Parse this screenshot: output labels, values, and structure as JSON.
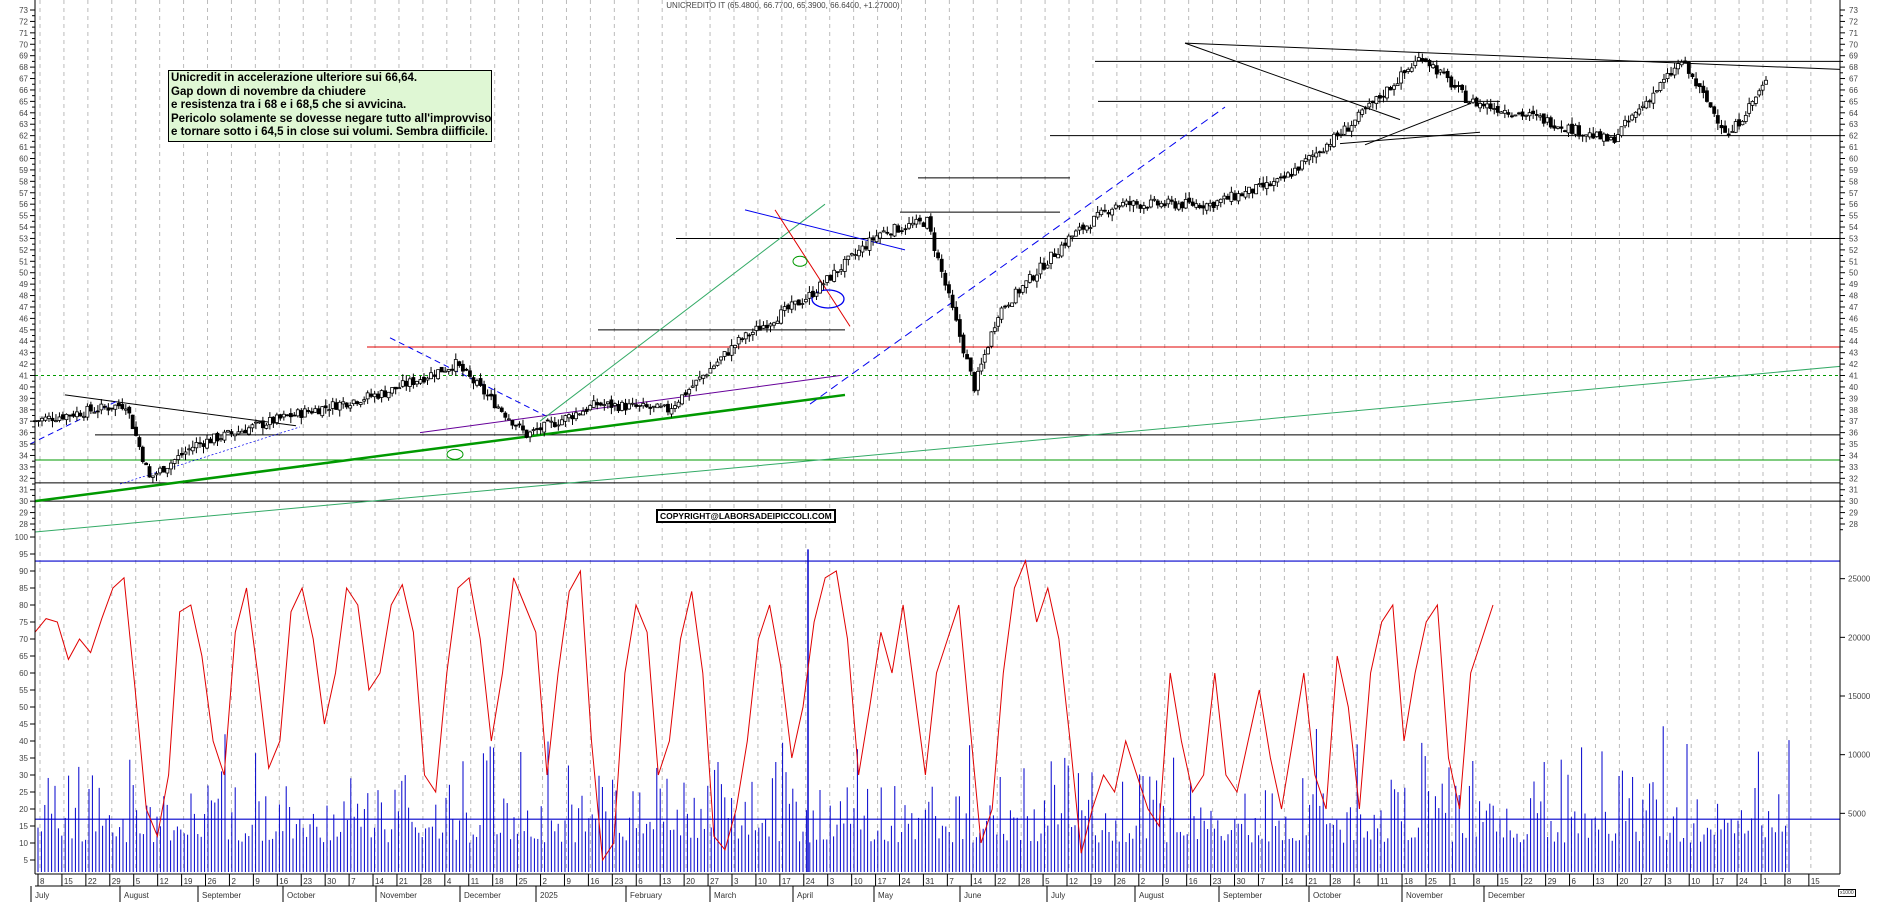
{
  "header": {
    "title": "UNICREDITO IT (65.4800, 66.7700, 65.3900, 66.6400, +1.27000)"
  },
  "note": {
    "lines": [
      "Unicredit in accelerazione ulteriore sui 66,64.",
      "Gap down di novembre da chiudere",
      "e resistenza tra i 68 e i 68,5 che si avvicina.",
      "Pericolo solamente se dovesse negare tutto all'improvviso",
      "e  tornare sotto i 64,5 in close sui volumi. Sembra diifficile."
    ]
  },
  "watermark": "COPYRIGHT@LABORSADEIPICCOLI.COM",
  "volume_unit_label": "x1000",
  "colors": {
    "price_candle": "#000000",
    "oscillator": "#e00000",
    "volume": "#0000cc",
    "support_green": "#009900",
    "trend_light_green": "#33aa66",
    "resistance_red": "#e00000",
    "trend_blue": "#0000ee",
    "trend_purple": "#660099",
    "note_bg": "#dff7d4"
  },
  "chart_data": [
    {
      "type": "candlestick",
      "title": "UNICREDITO IT (65.4800, 66.7700, 65.3900, 66.6400, +1.27000)",
      "last": {
        "open": 65.48,
        "high": 66.77,
        "low": 65.39,
        "close": 66.64,
        "change": 1.27
      },
      "ylim": [
        28,
        73
      ],
      "yticks": [
        28,
        29,
        30,
        31,
        32,
        33,
        34,
        35,
        36,
        37,
        38,
        39,
        40,
        41,
        42,
        43,
        44,
        45,
        46,
        47,
        48,
        49,
        50,
        51,
        52,
        53,
        54,
        55,
        56,
        57,
        58,
        59,
        60,
        61,
        62,
        63,
        64,
        65,
        66,
        67,
        68,
        69,
        70,
        71,
        72,
        73
      ],
      "x_months": [
        "July",
        "August",
        "September",
        "October",
        "November",
        "December",
        "2025",
        "February",
        "March",
        "April",
        "May",
        "June",
        "July",
        "August",
        "September",
        "October",
        "November",
        "December"
      ],
      "x_days": [
        "8",
        "15",
        "22",
        "29",
        "5",
        "12",
        "19",
        "26",
        "2",
        "9",
        "16",
        "23",
        "30",
        "7",
        "14",
        "21",
        "28",
        "4",
        "11",
        "18",
        "25",
        "2",
        "9",
        "16",
        "23",
        "6",
        "13",
        "20",
        "27",
        "3",
        "10",
        "17",
        "24",
        "3",
        "10",
        "17",
        "24",
        "31",
        "7",
        "14",
        "22",
        "28",
        "5",
        "12",
        "19",
        "26",
        "2",
        "9",
        "16",
        "23",
        "30",
        "7",
        "14",
        "21",
        "28",
        "4",
        "11",
        "18",
        "25",
        "1",
        "8",
        "15",
        "22",
        "29",
        "6",
        "13",
        "20",
        "27",
        "3",
        "10",
        "17",
        "24",
        "1",
        "8",
        "15"
      ],
      "approx_close_path": [
        {
          "date": "2024-07",
          "close": 37
        },
        {
          "date": "2024-07-29",
          "close": 38.5
        },
        {
          "date": "2024-08-05",
          "close": 32
        },
        {
          "date": "2024-08-19",
          "close": 35
        },
        {
          "date": "2024-09-16",
          "close": 37.5
        },
        {
          "date": "2024-10-14",
          "close": 39.5
        },
        {
          "date": "2024-11-04",
          "close": 42
        },
        {
          "date": "2024-11-25",
          "close": 35.8
        },
        {
          "date": "2024-12-16",
          "close": 38.5
        },
        {
          "date": "2025-01-06",
          "close": 38
        },
        {
          "date": "2025-01-27",
          "close": 44
        },
        {
          "date": "2025-02-17",
          "close": 48
        },
        {
          "date": "2025-03-10",
          "close": 53.5
        },
        {
          "date": "2025-03-24",
          "close": 54.5
        },
        {
          "date": "2025-04-07",
          "close": 40
        },
        {
          "date": "2025-04-14",
          "close": 46.5
        },
        {
          "date": "2025-05-05",
          "close": 53
        },
        {
          "date": "2025-05-19",
          "close": 56
        },
        {
          "date": "2025-06-16",
          "close": 56
        },
        {
          "date": "2025-07-07",
          "close": 58
        },
        {
          "date": "2025-07-28",
          "close": 63
        },
        {
          "date": "2025-08-18",
          "close": 69
        },
        {
          "date": "2025-09-01",
          "close": 65
        },
        {
          "date": "2025-09-22",
          "close": 63.5
        },
        {
          "date": "2025-10-13",
          "close": 61.5
        },
        {
          "date": "2025-11-03",
          "close": 68.5
        },
        {
          "date": "2025-11-17",
          "close": 62
        },
        {
          "date": "2025-11-28",
          "close": 66.64
        }
      ],
      "horizontal_levels": [
        {
          "value": 68.5,
          "color": "black"
        },
        {
          "value": 65,
          "color": "black"
        },
        {
          "value": 62,
          "color": "black"
        },
        {
          "value": 58.3,
          "color": "black"
        },
        {
          "value": 55.3,
          "color": "black"
        },
        {
          "value": 53,
          "color": "black"
        },
        {
          "value": 45,
          "color": "black"
        },
        {
          "value": 43.5,
          "color": "red"
        },
        {
          "value": 41,
          "color": "green-dotted"
        },
        {
          "value": 35.8,
          "color": "black"
        },
        {
          "value": 33.6,
          "color": "green"
        },
        {
          "value": 31.6,
          "color": "black"
        },
        {
          "value": 30,
          "color": "black"
        }
      ]
    },
    {
      "type": "line",
      "name": "oscillator",
      "ylim": [
        0,
        100
      ],
      "yticks": [
        5,
        10,
        15,
        20,
        25,
        30,
        35,
        40,
        45,
        50,
        55,
        60,
        65,
        70,
        75,
        80,
        85,
        90,
        95,
        100
      ],
      "reference_levels": [
        90,
        15
      ],
      "approx_values": [
        72,
        76,
        75,
        64,
        70,
        66,
        76,
        85,
        88,
        55,
        20,
        12,
        30,
        78,
        80,
        65,
        40,
        30,
        72,
        85,
        60,
        32,
        40,
        78,
        85,
        70,
        45,
        60,
        85,
        80,
        55,
        60,
        80,
        86,
        72,
        30,
        25,
        60,
        85,
        88,
        70,
        40,
        60,
        88,
        80,
        72,
        30,
        60,
        84,
        90,
        40,
        5,
        10,
        60,
        80,
        72,
        30,
        40,
        70,
        84,
        60,
        12,
        8,
        20,
        40,
        70,
        80,
        62,
        35,
        50,
        75,
        88,
        90,
        70,
        30,
        50,
        72,
        60,
        80,
        55,
        30,
        60,
        70,
        80,
        45,
        10,
        20,
        60,
        85,
        93,
        75,
        85,
        70,
        40,
        7,
        20,
        30,
        25,
        40,
        30,
        20,
        15,
        60,
        40,
        25,
        30,
        60,
        30,
        25,
        40,
        55,
        35,
        20,
        40,
        60,
        30,
        20,
        65,
        50,
        20,
        60,
        75,
        80,
        40,
        60,
        75,
        80,
        35,
        20,
        60,
        70,
        80
      ]
    },
    {
      "type": "bar",
      "name": "volume",
      "unit": "x1000",
      "ylim": [
        0,
        30000
      ],
      "yticks": [
        5000,
        10000,
        15000,
        20000,
        25000
      ],
      "reference_levels": [
        26500,
        4500
      ],
      "notable_spikes": [
        {
          "date": "2025-04-07",
          "value": 27500
        }
      ]
    }
  ]
}
